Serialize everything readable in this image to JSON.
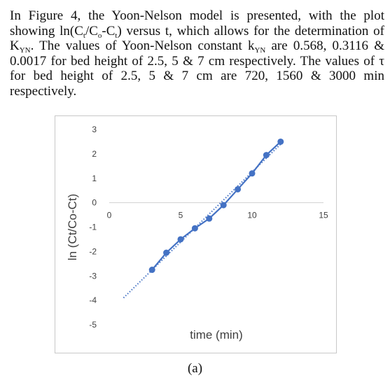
{
  "paragraph": {
    "s1": "In Figure 4, the Yoon-Nelson model is presented, with the plot showing ln(C",
    "s1_sub1": "t",
    "s2": "/C",
    "s2_sub": "o",
    "s3": "-C",
    "s3_sub": "t",
    "s4": ") versus t, which allows for the determination of K",
    "s4_sub": "YN",
    "s5": ". The values of Yoon-Nelson constant k",
    "s5_sub": "YN",
    "s6": " are 0.568, 0.3116 & 0.0017 for bed height of 2.5, 5 & 7 cm respectively. The values of τ for bed height of 2.5, 5 & 7 cm are 720, 1560 & 3000 min respectively."
  },
  "caption": "(a)",
  "chart_data": {
    "type": "scatter",
    "title": "",
    "xlabel": "time (min)",
    "ylabel": "ln (Ct/Co-Ct)",
    "xlim": [
      0,
      15
    ],
    "ylim": [
      -5,
      3
    ],
    "x_ticks": [
      "0",
      "5",
      "10",
      "15"
    ],
    "y_ticks": [
      "3",
      "2",
      "1",
      "0",
      "-1",
      "-2",
      "-3",
      "-4",
      "-5"
    ],
    "grid": false,
    "legend": "none",
    "series": [
      {
        "x": [
          3,
          4,
          5,
          6,
          7,
          8,
          9,
          10,
          11,
          12
        ],
        "y": [
          -2.75,
          -2.05,
          -1.5,
          -1.05,
          -0.65,
          -0.1,
          0.55,
          1.2,
          1.95,
          2.5
        ],
        "color": "#4472C4",
        "style": "line-markers"
      }
    ],
    "trendline": {
      "type": "linear",
      "x": [
        1,
        12
      ],
      "y": [
        -3.9,
        2.4
      ],
      "color": "#4472C4",
      "style": "dotted"
    }
  }
}
